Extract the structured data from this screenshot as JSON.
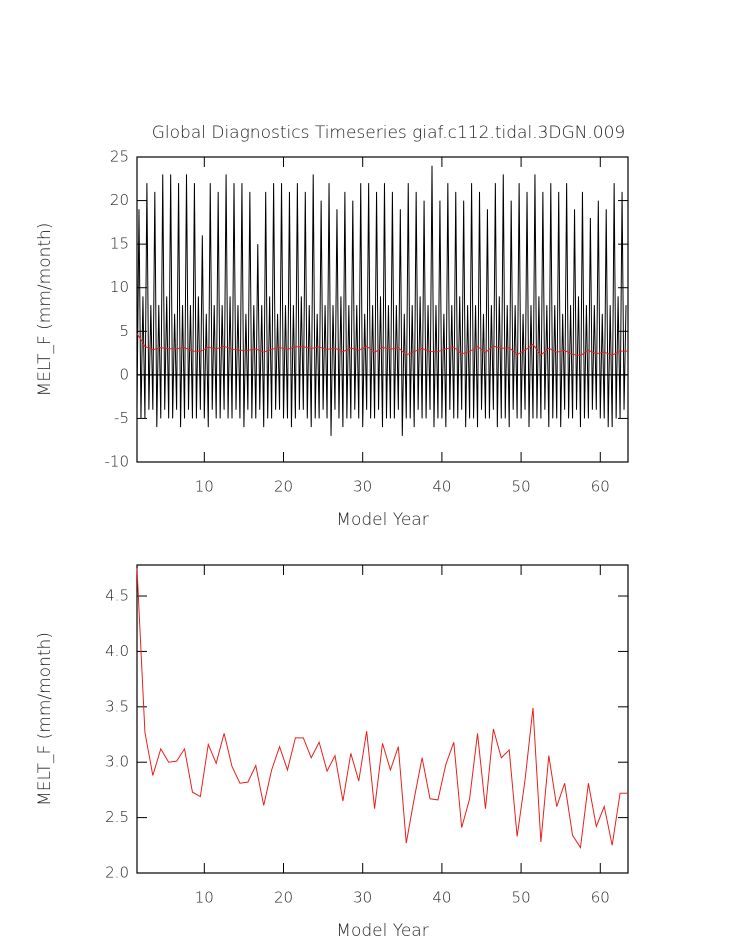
{
  "chart_data": [
    {
      "type": "line",
      "title": "Global Diagnostics Timeseries giaf.c112.tidal.3DGN.009",
      "xlabel": "Model Year",
      "ylabel": "MELT_F (mm/month)",
      "xlim": [
        1.5,
        63.5
      ],
      "ylim": [
        -10,
        25
      ],
      "xticks": [
        10,
        20,
        30,
        40,
        50,
        60
      ],
      "yticks": [
        -10,
        -5,
        0,
        5,
        10,
        15,
        20,
        25
      ],
      "hline": 0,
      "series": [
        {
          "color": "#000000",
          "x": [
            1.5,
            1.75,
            2,
            2.25,
            2.5,
            2.75,
            3,
            3.25,
            3.5,
            3.75,
            4,
            4.25,
            4.5,
            4.75,
            5,
            5.25,
            5.5,
            5.75,
            6,
            6.25,
            6.5,
            6.75,
            7,
            7.25,
            7.5,
            7.75,
            8,
            8.25,
            8.5,
            8.75,
            9,
            9.25,
            9.5,
            9.75,
            10,
            10.25,
            10.5,
            10.75,
            11,
            11.25,
            11.5,
            11.75,
            12,
            12.25,
            12.5,
            12.75,
            13,
            13.25,
            13.5,
            13.75,
            14,
            14.25,
            14.5,
            14.75,
            15,
            15.25,
            15.5,
            15.75,
            16,
            16.25,
            16.5,
            16.75,
            17,
            17.25,
            17.5,
            17.75,
            18,
            18.25,
            18.5,
            18.75,
            19,
            19.25,
            19.5,
            19.75,
            20,
            20.25,
            20.5,
            20.75,
            21,
            21.25,
            21.5,
            21.75,
            22,
            22.25,
            22.5,
            22.75,
            23,
            23.25,
            23.5,
            23.75,
            24,
            24.25,
            24.5,
            24.75,
            25,
            25.25,
            25.5,
            25.75,
            26,
            26.25,
            26.5,
            26.75,
            27,
            27.25,
            27.5,
            27.75,
            28,
            28.25,
            28.5,
            28.75,
            29,
            29.25,
            29.5,
            29.75,
            30,
            30.25,
            30.5,
            30.75,
            31,
            31.25,
            31.5,
            31.75,
            32,
            32.25,
            32.5,
            32.75,
            33,
            33.25,
            33.5,
            33.75,
            34,
            34.25,
            34.5,
            34.75,
            35,
            35.25,
            35.5,
            35.75,
            36,
            36.25,
            36.5,
            36.75,
            37,
            37.25,
            37.5,
            37.75,
            38,
            38.25,
            38.5,
            38.75,
            39,
            39.25,
            39.5,
            39.75,
            40,
            40.25,
            40.5,
            40.75,
            41,
            41.25,
            41.5,
            41.75,
            42,
            42.25,
            42.5,
            42.75,
            43,
            43.25,
            43.5,
            43.75,
            44,
            44.25,
            44.5,
            44.75,
            45,
            45.25,
            45.5,
            45.75,
            46,
            46.25,
            46.5,
            46.75,
            47,
            47.25,
            47.5,
            47.75,
            48,
            48.25,
            48.5,
            48.75,
            49,
            49.25,
            49.5,
            49.75,
            50,
            50.25,
            50.5,
            50.75,
            51,
            51.25,
            51.5,
            51.75,
            52,
            52.25,
            52.5,
            52.75,
            53,
            53.25,
            53.5,
            53.75,
            54,
            54.25,
            54.5,
            54.75,
            55,
            55.25,
            55.5,
            55.75,
            56,
            56.25,
            56.5,
            56.75,
            57,
            57.25,
            57.5,
            57.75,
            58,
            58.25,
            58.5,
            58.75,
            59,
            59.25,
            59.5,
            59.75,
            60,
            60.25,
            60.5,
            60.75,
            61,
            61.25,
            61.5,
            61.75,
            62,
            62.25,
            62.5,
            62.75,
            63,
            63.25
          ],
          "values": [
            -4,
            19,
            -5,
            9,
            -5,
            22,
            -4,
            8,
            -4,
            21,
            -6,
            8,
            -5,
            23,
            -4,
            9,
            -5,
            23,
            -5,
            7,
            -4,
            22,
            -6,
            8,
            -5,
            23,
            -4,
            8,
            -5,
            22,
            -5,
            9,
            -4,
            16,
            -5,
            7,
            -6,
            22,
            -4,
            8,
            -5,
            21,
            -5,
            8,
            -4,
            23,
            -5,
            9,
            -5,
            22,
            -4,
            8,
            -5,
            22,
            -6,
            7,
            -4,
            21,
            -5,
            8,
            -5,
            15,
            -4,
            8,
            -6,
            21,
            -5,
            9,
            -5,
            22,
            -4,
            7,
            -4,
            22,
            -5,
            8,
            -5,
            21,
            -6,
            8,
            -5,
            22,
            -4,
            9,
            -4,
            21,
            -5,
            8,
            -6,
            23,
            -5,
            7,
            -5,
            20,
            -4,
            8,
            -5,
            22,
            -7,
            8,
            -4,
            19,
            -5,
            9,
            -6,
            21,
            -5,
            8,
            -5,
            20,
            -4,
            8,
            -5,
            22,
            -6,
            7,
            -4,
            22,
            -5,
            8,
            -5,
            21,
            -4,
            9,
            -6,
            22,
            -5,
            8,
            -5,
            21,
            -5,
            8,
            -4,
            19,
            -7,
            7,
            -5,
            22,
            -5,
            8,
            -6,
            21,
            -4,
            9,
            -5,
            20,
            -5,
            8,
            -4,
            24,
            -6,
            8,
            -5,
            20,
            -5,
            7,
            -6,
            22,
            -4,
            8,
            -5,
            21,
            -5,
            9,
            -4,
            20,
            -6,
            8,
            -5,
            22,
            -5,
            8,
            -6,
            21,
            -4,
            7,
            -5,
            19,
            -5,
            8,
            -4,
            22,
            -6,
            9,
            -5,
            23,
            -5,
            8,
            -6,
            20,
            -4,
            8,
            -5,
            22,
            -5,
            7,
            -4,
            21,
            -6,
            8,
            -5,
            23,
            -5,
            9,
            -5,
            21,
            -4,
            8,
            -6,
            22,
            -5,
            8,
            -5,
            21,
            -6,
            7,
            -4,
            22,
            -5,
            8,
            -5,
            19,
            -4,
            9,
            -6,
            21,
            -5,
            8,
            -5,
            18,
            -4,
            8,
            -4,
            20,
            -5,
            7,
            -5,
            19,
            -6,
            8,
            -6,
            22,
            -5,
            9,
            -5,
            21,
            -4,
            8
          ]
        },
        {
          "color": "#e8201c",
          "x": [
            1.5,
            2.5,
            3.5,
            4.5,
            5.5,
            6.5,
            7.5,
            8.5,
            9.5,
            10.5,
            11.5,
            12.5,
            13.5,
            14.5,
            15.5,
            16.5,
            17.5,
            18.5,
            19.5,
            20.5,
            21.5,
            22.5,
            23.5,
            24.5,
            25.5,
            26.5,
            27.5,
            28.5,
            29.5,
            30.5,
            31.5,
            32.5,
            33.5,
            34.5,
            35.5,
            36.5,
            37.5,
            38.5,
            39.5,
            40.5,
            41.5,
            42.5,
            43.5,
            44.5,
            45.5,
            46.5,
            47.5,
            48.5,
            49.5,
            50.5,
            51.5,
            52.5,
            53.5,
            54.5,
            55.5,
            56.5,
            57.5,
            58.5,
            59.5,
            60.5,
            61.5,
            62.5,
            63.5
          ],
          "values": [
            4.75,
            3.27,
            2.88,
            3.12,
            3.0,
            3.01,
            3.12,
            2.73,
            2.69,
            3.16,
            2.99,
            3.26,
            2.96,
            2.81,
            2.82,
            2.97,
            2.61,
            2.93,
            3.14,
            2.93,
            3.22,
            3.22,
            3.04,
            3.18,
            2.92,
            3.06,
            2.65,
            3.08,
            2.83,
            3.28,
            2.58,
            3.17,
            2.93,
            3.14,
            2.27,
            2.67,
            3.04,
            2.67,
            2.66,
            2.98,
            3.18,
            2.41,
            2.67,
            3.26,
            2.58,
            3.3,
            3.04,
            3.11,
            2.33,
            2.84,
            3.49,
            2.28,
            3.06,
            2.6,
            2.81,
            2.34,
            2.23,
            2.81,
            2.42,
            2.6,
            2.25,
            2.72,
            2.72
          ]
        }
      ]
    },
    {
      "type": "line",
      "xlabel": "Model Year",
      "ylabel": "MELT_F (mm/month)",
      "xlim": [
        1.5,
        63.5
      ],
      "ylim": [
        2.0,
        4.78
      ],
      "xticks": [
        10,
        20,
        30,
        40,
        50,
        60
      ],
      "yticks": [
        {
          "value": 2.0,
          "label": "2.0"
        },
        2.5,
        {
          "value": 3.0,
          "label": "3.0"
        },
        3.5,
        {
          "value": 4.0,
          "label": "4.0"
        },
        4.5
      ],
      "series": [
        {
          "color": "#e8201c",
          "x": [
            1.5,
            2.5,
            3.5,
            4.5,
            5.5,
            6.5,
            7.5,
            8.5,
            9.5,
            10.5,
            11.5,
            12.5,
            13.5,
            14.5,
            15.5,
            16.5,
            17.5,
            18.5,
            19.5,
            20.5,
            21.5,
            22.5,
            23.5,
            24.5,
            25.5,
            26.5,
            27.5,
            28.5,
            29.5,
            30.5,
            31.5,
            32.5,
            33.5,
            34.5,
            35.5,
            36.5,
            37.5,
            38.5,
            39.5,
            40.5,
            41.5,
            42.5,
            43.5,
            44.5,
            45.5,
            46.5,
            47.5,
            48.5,
            49.5,
            50.5,
            51.5,
            52.5,
            53.5,
            54.5,
            55.5,
            56.5,
            57.5,
            58.5,
            59.5,
            60.5,
            61.5,
            62.5,
            63.5
          ],
          "values": [
            4.75,
            3.27,
            2.88,
            3.12,
            3.0,
            3.01,
            3.12,
            2.73,
            2.69,
            3.16,
            2.99,
            3.26,
            2.96,
            2.81,
            2.82,
            2.97,
            2.61,
            2.93,
            3.14,
            2.93,
            3.22,
            3.22,
            3.04,
            3.18,
            2.92,
            3.06,
            2.65,
            3.08,
            2.83,
            3.28,
            2.58,
            3.17,
            2.93,
            3.14,
            2.27,
            2.67,
            3.04,
            2.67,
            2.66,
            2.98,
            3.18,
            2.41,
            2.67,
            3.26,
            2.58,
            3.3,
            3.04,
            3.11,
            2.33,
            2.84,
            3.49,
            2.28,
            3.06,
            2.6,
            2.81,
            2.34,
            2.23,
            2.81,
            2.42,
            2.6,
            2.25,
            2.72,
            2.72
          ]
        }
      ]
    }
  ]
}
